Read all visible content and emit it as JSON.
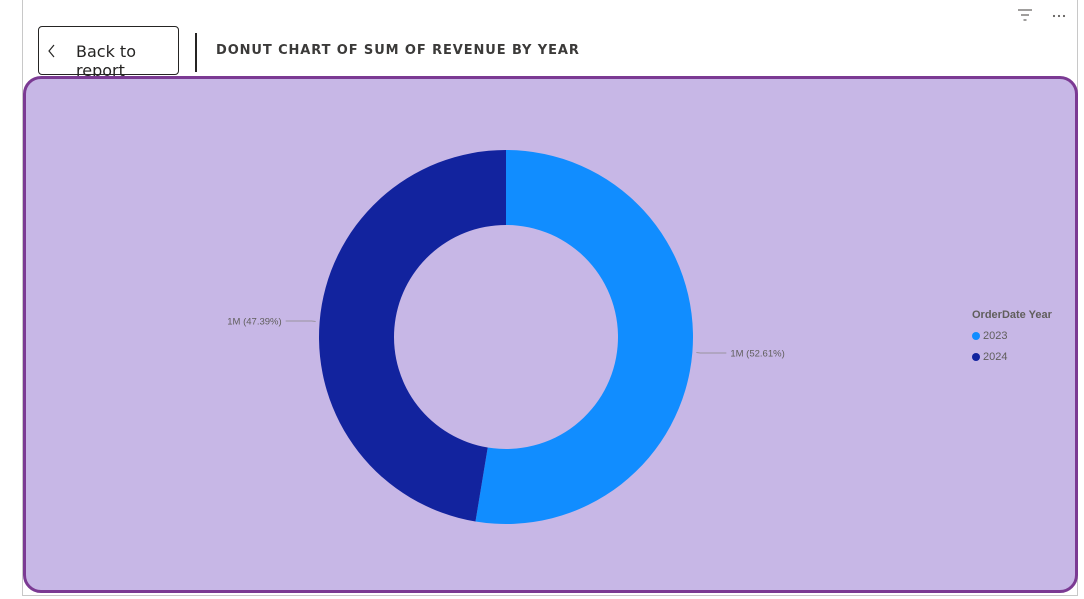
{
  "header": {
    "back_label": "Back to report",
    "visual_title": "DONUT CHART OF SUM OF REVENUE BY YEAR"
  },
  "toolbar": {
    "icons": [
      "filter-icon",
      "more-options-icon"
    ]
  },
  "colors": {
    "series_2023": "#118dff",
    "series_2024": "#12239e",
    "background": "#c7b7e6",
    "border": "#7b3a93"
  },
  "chart_data": {
    "type": "pie",
    "subtype": "donut",
    "title": "DONUT CHART OF SUM OF REVENUE BY YEAR",
    "legend_title": "OrderDate Year",
    "legend_position": "right",
    "slices": [
      {
        "label": "2023",
        "percent": 52.61,
        "data_label": "1M (52.61%)",
        "color": "#118dff"
      },
      {
        "label": "2024",
        "percent": 47.39,
        "data_label": "1M (47.39%)",
        "color": "#12239e"
      }
    ]
  }
}
